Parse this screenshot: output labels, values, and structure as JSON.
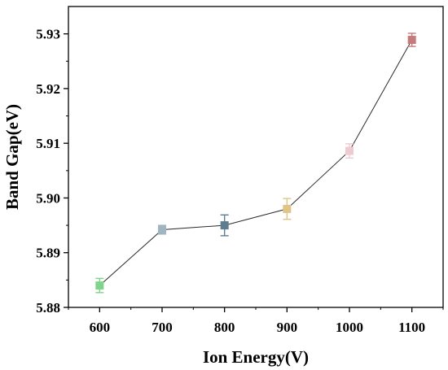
{
  "chart_data": {
    "type": "line",
    "title": "",
    "xlabel": "Ion Energy(V)",
    "ylabel": "Band Gap(eV)",
    "xlim": [
      550,
      1150
    ],
    "ylim": [
      5.88,
      5.935
    ],
    "x_ticks": [
      "600",
      "700",
      "800",
      "900",
      "1000",
      "1100"
    ],
    "y_ticks": [
      "5.88",
      "5.89",
      "5.90",
      "5.91",
      "5.92",
      "5.93"
    ],
    "grid": false,
    "legend": "none",
    "series": [
      {
        "points": [
          {
            "x": 600,
            "y": 5.884,
            "err": 0.0013,
            "color": "#7fd38a"
          },
          {
            "x": 700,
            "y": 5.8942,
            "err": 0.0008,
            "color": "#9fb6c1"
          },
          {
            "x": 800,
            "y": 5.895,
            "err": 0.0019,
            "color": "#5e7d8e"
          },
          {
            "x": 900,
            "y": 5.898,
            "err": 0.0019,
            "color": "#e0c487"
          },
          {
            "x": 1000,
            "y": 5.9086,
            "err": 0.0013,
            "color": "#eecbd0"
          },
          {
            "x": 1100,
            "y": 5.9289,
            "err": 0.0012,
            "color": "#c77a7b"
          }
        ]
      }
    ]
  }
}
